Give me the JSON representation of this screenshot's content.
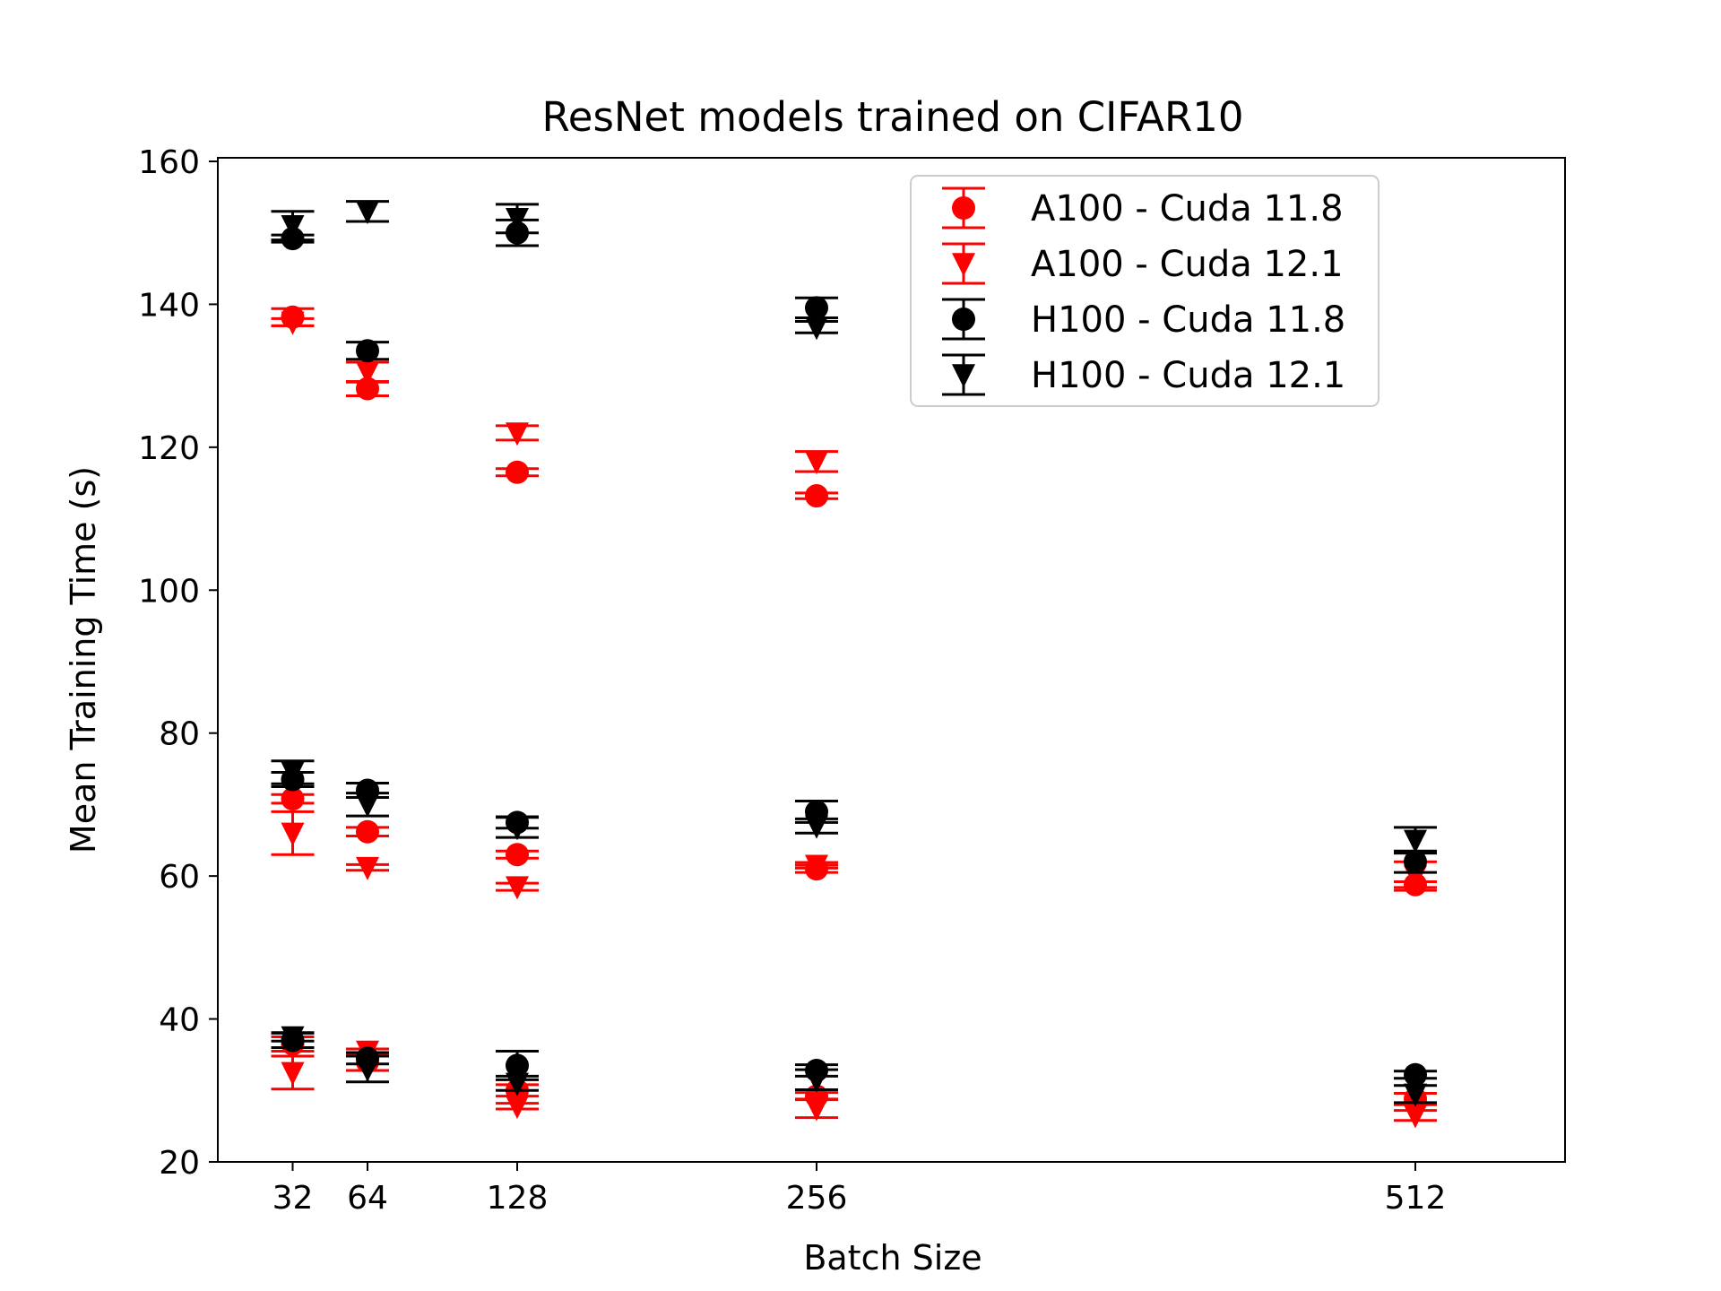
{
  "chart_data": {
    "type": "scatter",
    "title": "ResNet models trained on CIFAR10",
    "xlabel": "Batch Size",
    "ylabel": "Mean Training Time (s)",
    "x_ticks": [
      32,
      64,
      128,
      256,
      512
    ],
    "x_tick_labels": [
      "32",
      "64",
      "128",
      "256",
      "512"
    ],
    "y_ticks": [
      20,
      40,
      60,
      80,
      100,
      120,
      140,
      160
    ],
    "y_tick_labels": [
      "20",
      "40",
      "60",
      "80",
      "100",
      "120",
      "140",
      "160"
    ],
    "xlim": [
      0,
      576
    ],
    "ylim": [
      20,
      160.5
    ],
    "grid": false,
    "legend_position": "upper-right",
    "series": [
      {
        "name": "A100 - Cuda 11.8",
        "color": "#ff0000",
        "marker": "circle",
        "points": [
          {
            "x": 32,
            "y": 138.2,
            "err": 1.2
          },
          {
            "x": 64,
            "y": 128.2,
            "err": 1.0
          },
          {
            "x": 128,
            "y": 116.5,
            "err": 0.5
          },
          {
            "x": 256,
            "y": 113.2,
            "err": 0.4
          },
          {
            "x": 32,
            "y": 70.8,
            "err": 0.6
          },
          {
            "x": 64,
            "y": 66.2,
            "err": 0.6
          },
          {
            "x": 128,
            "y": 63.0,
            "err": 0.5
          },
          {
            "x": 256,
            "y": 61.0,
            "err": 0.5
          },
          {
            "x": 512,
            "y": 58.8,
            "err": 0.4
          },
          {
            "x": 32,
            "y": 36.5,
            "err": 1.0
          },
          {
            "x": 64,
            "y": 34.0,
            "err": 1.2
          },
          {
            "x": 128,
            "y": 30.0,
            "err": 0.8
          },
          {
            "x": 256,
            "y": 29.2,
            "err": 0.5
          },
          {
            "x": 512,
            "y": 28.8,
            "err": 0.8
          }
        ]
      },
      {
        "name": "A100 - Cuda 12.1",
        "color": "#ff0000",
        "marker": "triangle-down",
        "points": [
          {
            "x": 32,
            "y": 137.5,
            "err": 0.5
          },
          {
            "x": 64,
            "y": 130.5,
            "err": 1.4
          },
          {
            "x": 128,
            "y": 122.0,
            "err": 1.0
          },
          {
            "x": 256,
            "y": 118.0,
            "err": 1.4
          },
          {
            "x": 32,
            "y": 66.0,
            "err": 3.0
          },
          {
            "x": 64,
            "y": 61.2,
            "err": 0.4
          },
          {
            "x": 128,
            "y": 58.5,
            "err": 0.5
          },
          {
            "x": 256,
            "y": 61.5,
            "err": 0.4
          },
          {
            "x": 512,
            "y": 60.0,
            "err": 2.0
          },
          {
            "x": 32,
            "y": 32.5,
            "err": 2.3
          },
          {
            "x": 64,
            "y": 35.5,
            "err": 0.3
          },
          {
            "x": 128,
            "y": 27.8,
            "err": 0.4
          },
          {
            "x": 256,
            "y": 27.5,
            "err": 1.3
          },
          {
            "x": 512,
            "y": 26.5,
            "err": 0.7
          }
        ]
      },
      {
        "name": "H100 - Cuda 11.8",
        "color": "#000000",
        "marker": "circle",
        "points": [
          {
            "x": 32,
            "y": 149.2,
            "err": 0.5
          },
          {
            "x": 64,
            "y": 133.5,
            "err": 1.2
          },
          {
            "x": 128,
            "y": 150.0,
            "err": 1.8
          },
          {
            "x": 256,
            "y": 139.5,
            "err": 1.4
          },
          {
            "x": 32,
            "y": 73.5,
            "err": 1.0
          },
          {
            "x": 64,
            "y": 72.0,
            "err": 1.0
          },
          {
            "x": 128,
            "y": 67.5,
            "err": 0.8
          },
          {
            "x": 256,
            "y": 69.0,
            "err": 1.5
          },
          {
            "x": 512,
            "y": 62.0,
            "err": 1.5
          },
          {
            "x": 32,
            "y": 37.0,
            "err": 1.0
          },
          {
            "x": 64,
            "y": 34.5,
            "err": 0.8
          },
          {
            "x": 128,
            "y": 33.5,
            "err": 2.0
          },
          {
            "x": 256,
            "y": 32.8,
            "err": 0.8
          },
          {
            "x": 512,
            "y": 32.2,
            "err": 0.5
          }
        ]
      },
      {
        "name": "H100 - Cuda 12.1",
        "color": "#000000",
        "marker": "triangle-down",
        "points": [
          {
            "x": 32,
            "y": 151.0,
            "err": 2.0
          },
          {
            "x": 64,
            "y": 153.0,
            "err": 1.4
          },
          {
            "x": 128,
            "y": 152.0,
            "err": 2.0
          },
          {
            "x": 256,
            "y": 136.8,
            "err": 0.8
          },
          {
            "x": 32,
            "y": 74.5,
            "err": 1.6
          },
          {
            "x": 64,
            "y": 70.0,
            "err": 1.6
          },
          {
            "x": 128,
            "y": 66.8,
            "err": 1.4
          },
          {
            "x": 256,
            "y": 67.0,
            "err": 1.0
          },
          {
            "x": 512,
            "y": 65.0,
            "err": 1.8
          },
          {
            "x": 32,
            "y": 37.5,
            "err": 0.6
          },
          {
            "x": 64,
            "y": 33.0,
            "err": 1.8
          },
          {
            "x": 128,
            "y": 31.0,
            "err": 1.0
          },
          {
            "x": 256,
            "y": 31.5,
            "err": 1.4
          },
          {
            "x": 512,
            "y": 29.5,
            "err": 1.2
          }
        ]
      }
    ]
  }
}
